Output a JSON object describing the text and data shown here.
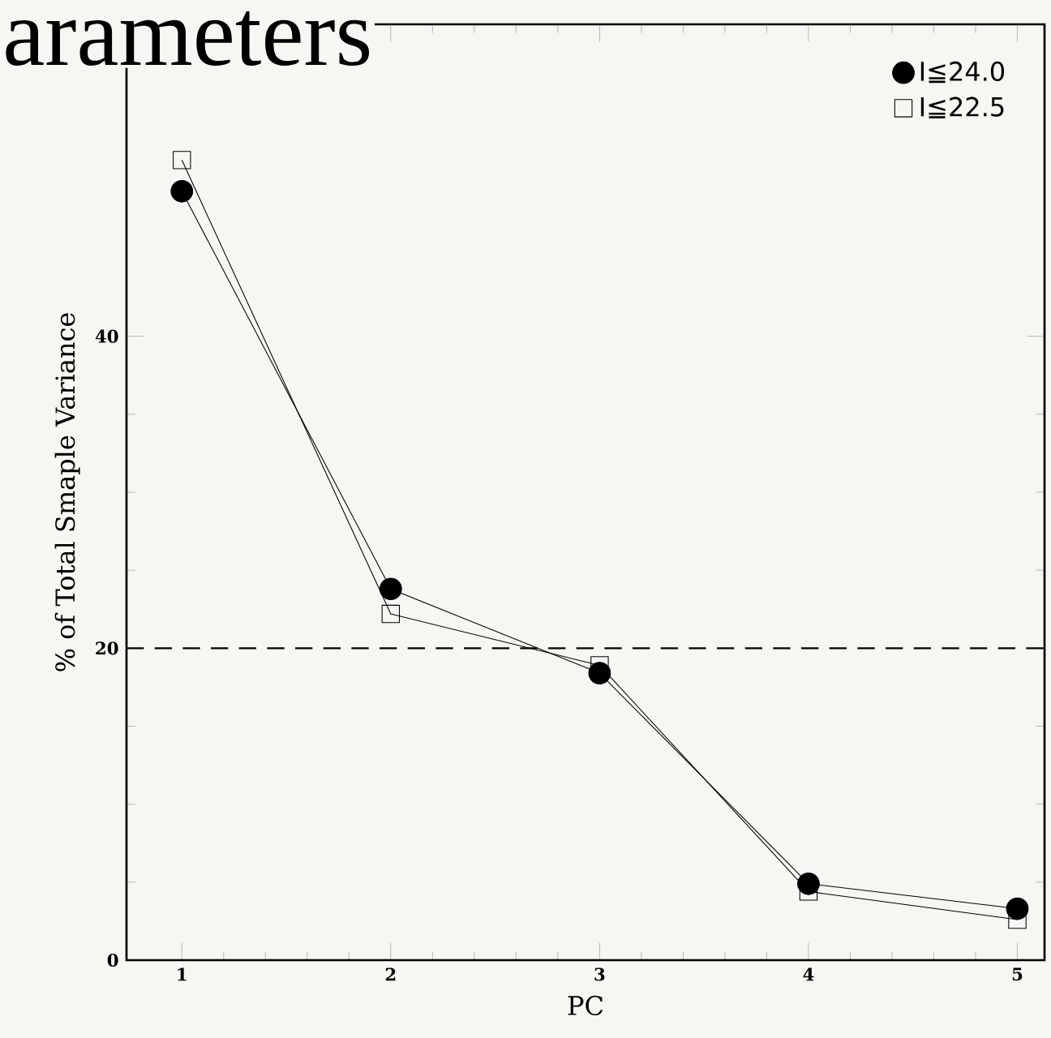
{
  "chart_data": {
    "type": "line",
    "xlabel": "PC",
    "ylabel": "% of Total Smaple Variance",
    "annotations": [
      "arameters"
    ],
    "x": [
      1,
      2,
      3,
      4,
      5
    ],
    "series": [
      {
        "name": "I≦24.0",
        "color": "#000000",
        "marker": "circle",
        "values": [
          49.3,
          23.8,
          18.4,
          4.9,
          3.3
        ]
      },
      {
        "name": "I≦22.5",
        "color": "#000000",
        "marker": "square",
        "values": [
          51.3,
          22.2,
          18.9,
          4.4,
          2.6
        ]
      }
    ],
    "xlim": [
      0.735,
      5.13
    ],
    "ylim": [
      0,
      60
    ],
    "xticks": [
      1,
      2,
      3,
      4,
      5
    ],
    "yticks": [
      0,
      20,
      40
    ],
    "ref_lines": [
      {
        "axis": "y",
        "value": 20,
        "line_style": "dashed"
      }
    ],
    "legend": "top right",
    "grid": false,
    "line_style": "solid"
  }
}
